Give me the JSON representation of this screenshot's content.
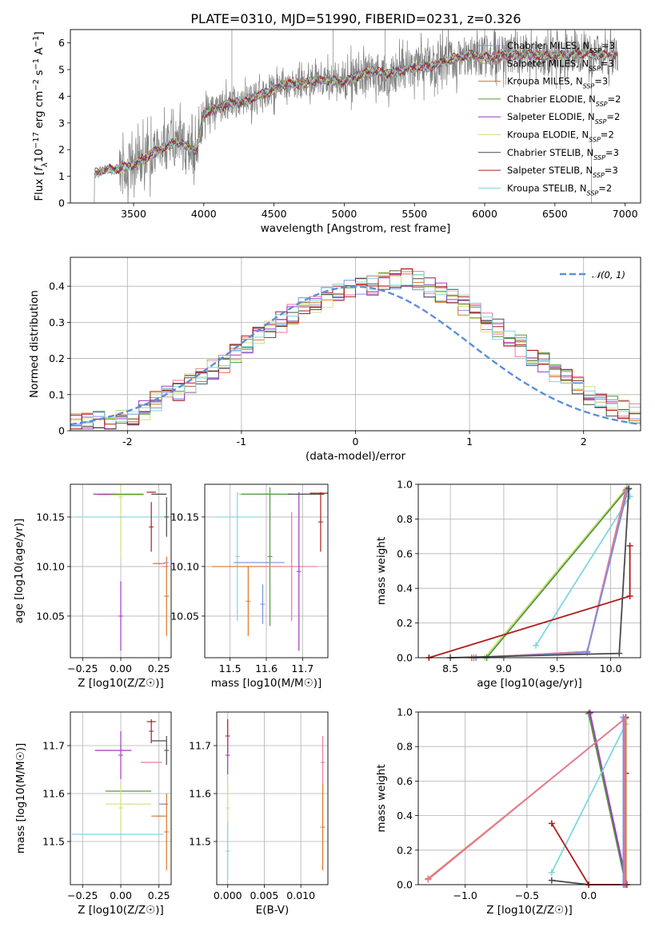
{
  "figure_title": "PLATE=0310, MJD=51990, FIBERID=0231, z=0.326",
  "colors": {
    "Chabrier MILES": "#7b8fe0",
    "Salpeter MILES": "#e67a9a",
    "Kroupa MILES": "#d9762b",
    "Chabrier ELODIE": "#4f9a3c",
    "Salpeter ELODIE": "#a337c2",
    "Kroupa ELODIE": "#d2e07a",
    "Chabrier STELIB": "#4a4a4a",
    "Salpeter STELIB": "#b01b1b",
    "Kroupa STELIB": "#7fd6de",
    "data": "#808080",
    "normal": "#5b8fd9"
  },
  "chart_data": [
    {
      "id": "spectrum",
      "type": "line",
      "title": "PLATE=0310, MJD=51990, FIBERID=0231, z=0.326",
      "xlabel": "wavelength [Angstrom, rest frame]",
      "ylabel_parts": [
        "Flux [",
        "f",
        "λ",
        "10",
        "−17",
        " erg cm",
        "−2",
        " s",
        "−1",
        " A",
        "−1",
        "]"
      ],
      "xlim": [
        3050,
        7110
      ],
      "ylim": [
        0,
        6.5
      ],
      "xticks": [
        3500,
        4000,
        4500,
        5000,
        5500,
        6000,
        6500,
        7000
      ],
      "yticks": [
        0,
        1,
        2,
        3,
        4,
        5,
        6
      ],
      "legend_position": "upper-right",
      "legend": [
        {
          "model": "Chabrier MILES",
          "nssp": "3"
        },
        {
          "model": "Salpeter MILES",
          "nssp": "3"
        },
        {
          "model": "Kroupa MILES",
          "nssp": "3"
        },
        {
          "model": "Chabrier ELODIE",
          "nssp": "2"
        },
        {
          "model": "Salpeter ELODIE",
          "nssp": "2"
        },
        {
          "model": "Kroupa ELODIE",
          "nssp": "2"
        },
        {
          "model": "Chabrier STELIB",
          "nssp": "3"
        },
        {
          "model": "Salpeter STELIB",
          "nssp": "3"
        },
        {
          "model": "Kroupa STELIB",
          "nssp": "2"
        }
      ],
      "continuum": {
        "x": [
          3220,
          3300,
          3400,
          3500,
          3600,
          3700,
          3800,
          3900,
          3950,
          4000,
          4100,
          4200,
          4300,
          4400,
          4500,
          4600,
          4700,
          4800,
          4900,
          5000,
          5100,
          5200,
          5300,
          5400,
          5500,
          5600,
          5700,
          5800,
          5900,
          6000,
          6100,
          6200,
          6300,
          6400,
          6500,
          6600,
          6700,
          6800,
          6900,
          6950
        ],
        "y": [
          1.1,
          1.25,
          1.3,
          1.45,
          1.75,
          2.05,
          2.3,
          2.1,
          1.95,
          3.35,
          3.55,
          3.75,
          3.8,
          4.05,
          4.25,
          4.5,
          4.45,
          4.6,
          4.6,
          4.55,
          4.75,
          4.95,
          4.85,
          4.95,
          5.1,
          5.1,
          5.3,
          5.45,
          5.55,
          5.45,
          5.5,
          5.55,
          5.6,
          5.5,
          5.5,
          5.6,
          5.6,
          5.55,
          5.55,
          5.6
        ]
      }
    },
    {
      "id": "residuals",
      "type": "histogram",
      "xlabel": "(data-model)/error",
      "ylabel": "Normed distribution",
      "xlim": [
        -2.5,
        2.5
      ],
      "ylim": [
        0,
        0.48
      ],
      "xticks": [
        -2,
        -1,
        0,
        1,
        2
      ],
      "yticks": [
        0.0,
        0.1,
        0.2,
        0.3,
        0.4
      ],
      "grid": true,
      "legend_position": "upper-right",
      "legend_label": "𝒩(0, 1)",
      "bin_width": 0.1,
      "bin_start": -2.5,
      "base_values": [
        0.025,
        0.025,
        0.03,
        0.03,
        0.035,
        0.045,
        0.06,
        0.085,
        0.1,
        0.11,
        0.13,
        0.15,
        0.17,
        0.19,
        0.215,
        0.24,
        0.265,
        0.28,
        0.3,
        0.32,
        0.34,
        0.355,
        0.37,
        0.38,
        0.39,
        0.395,
        0.4,
        0.41,
        0.415,
        0.42,
        0.415,
        0.4,
        0.385,
        0.37,
        0.35,
        0.33,
        0.3,
        0.28,
        0.26,
        0.235,
        0.21,
        0.19,
        0.165,
        0.14,
        0.12,
        0.1,
        0.08,
        0.07,
        0.06,
        0.05,
        0.045
      ]
    },
    {
      "id": "age-vs-z",
      "type": "scatter",
      "xlabel": "Z [log10(Z/Z☉)]",
      "ylabel": "age  [log10(age/yr)]",
      "xlim": [
        -0.33,
        0.33
      ],
      "ylim": [
        10.008,
        10.183
      ],
      "xticks": [
        -0.25,
        0.0,
        0.25
      ],
      "xtick_labels": [
        "−0.25",
        "0.00",
        "0.25"
      ],
      "yticks": [
        10.05,
        10.1,
        10.15
      ],
      "ytick_labels": [
        "10.05",
        "10.10",
        "10.15"
      ],
      "grid": true,
      "points": [
        {
          "model": "Salpeter ELODIE",
          "x": -0.1,
          "y": 10.173,
          "xerr": 0.08,
          "yerr": 0.0
        },
        {
          "model": "Salpeter ELODIE",
          "x": 0.0,
          "y": 10.05,
          "xerr": 0.0,
          "yerr": 0.035
        },
        {
          "model": "Kroupa ELODIE",
          "x": 0.0,
          "y": 10.172,
          "xerr": 0.15,
          "yerr": 0.0
        },
        {
          "model": "Kroupa ELODIE",
          "x": 0.0,
          "y": 10.17,
          "xerr": 0.0,
          "yerr": 0.06
        },
        {
          "model": "Chabrier ELODIE",
          "x": 0.05,
          "y": 10.173,
          "xerr": 0.1,
          "yerr": 0.0
        },
        {
          "model": "Kroupa STELIB",
          "x": 0.0,
          "y": 10.15,
          "xerr": 0.3,
          "yerr": 0.0
        },
        {
          "model": "Chabrier STELIB",
          "x": 0.25,
          "y": 10.173,
          "xerr": 0.05,
          "yerr": 0.0
        },
        {
          "model": "Chabrier STELIB",
          "x": 0.3,
          "y": 10.15,
          "xerr": 0.0,
          "yerr": 0.02
        },
        {
          "model": "Salpeter STELIB",
          "x": 0.2,
          "y": 10.175,
          "xerr": 0.03,
          "yerr": 0.0
        },
        {
          "model": "Salpeter STELIB",
          "x": 0.2,
          "y": 10.14,
          "xerr": 0.0,
          "yerr": 0.025
        },
        {
          "model": "Salpeter MILES",
          "x": 0.29,
          "y": 10.1,
          "xerr": 0.02,
          "yerr": 0.0
        },
        {
          "model": "Kroupa MILES",
          "x": 0.25,
          "y": 10.103,
          "xerr": 0.04,
          "yerr": 0.0
        },
        {
          "model": "Kroupa MILES",
          "x": 0.3,
          "y": 10.07,
          "xerr": 0.0,
          "yerr": 0.04
        },
        {
          "model": "Chabrier MILES",
          "x": 0.3,
          "y": 10.104,
          "xerr": 0.0,
          "yerr": 0.0
        }
      ]
    },
    {
      "id": "age-vs-mass",
      "type": "scatter",
      "xlabel": "mass [log10(M/M☉)]",
      "xlim": [
        11.43,
        11.77
      ],
      "ylim": [
        10.008,
        10.183
      ],
      "xticks": [
        11.5,
        11.6,
        11.7
      ],
      "xtick_labels": [
        "11.5",
        "11.6",
        "11.7"
      ],
      "yticks": [
        10.05,
        10.1,
        10.15
      ],
      "ytick_labels": [
        "10.05",
        "10.10",
        "10.15"
      ],
      "grid": true,
      "points": [
        {
          "model": "Kroupa STELIB",
          "x": 11.52,
          "y": 10.15,
          "xerr": 0.06,
          "yerr": 0.0
        },
        {
          "model": "Kroupa STELIB",
          "x": 11.52,
          "y": 10.11,
          "xerr": 0.0,
          "yerr": 0.065
        },
        {
          "model": "Kroupa ELODIE",
          "x": 11.58,
          "y": 10.173,
          "xerr": 0.06,
          "yerr": 0.0
        },
        {
          "model": "Kroupa MILES",
          "x": 11.55,
          "y": 10.1,
          "xerr": 0.1,
          "yerr": 0.0
        },
        {
          "model": "Kroupa MILES",
          "x": 11.55,
          "y": 10.065,
          "xerr": 0.0,
          "yerr": 0.035
        },
        {
          "model": "Chabrier MILES",
          "x": 11.58,
          "y": 10.104,
          "xerr": 0.07,
          "yerr": 0.0
        },
        {
          "model": "Chabrier MILES",
          "x": 11.59,
          "y": 10.062,
          "xerr": 0.0,
          "yerr": 0.02
        },
        {
          "model": "Chabrier ELODIE",
          "x": 11.6,
          "y": 10.173,
          "xerr": 0.07,
          "yerr": 0.0
        },
        {
          "model": "Chabrier ELODIE",
          "x": 11.61,
          "y": 10.11,
          "xerr": 0.0,
          "yerr": 0.07
        },
        {
          "model": "Salpeter MILES",
          "x": 11.67,
          "y": 10.1,
          "xerr": 0.07,
          "yerr": 0.0
        },
        {
          "model": "Salpeter MILES",
          "x": 11.67,
          "y": 10.1,
          "xerr": 0.0,
          "yerr": 0.055
        },
        {
          "model": "Salpeter ELODIE",
          "x": 11.69,
          "y": 10.095,
          "xerr": 0.0,
          "yerr": 0.08
        },
        {
          "model": "Chabrier STELIB",
          "x": 11.71,
          "y": 10.173,
          "xerr": 0.05,
          "yerr": 0.0
        },
        {
          "model": "Salpeter STELIB",
          "x": 11.75,
          "y": 10.174,
          "xerr": 0.03,
          "yerr": 0.0
        },
        {
          "model": "Salpeter STELIB",
          "x": 11.75,
          "y": 10.145,
          "xerr": 0.0,
          "yerr": 0.03
        }
      ]
    },
    {
      "id": "weight-vs-age",
      "type": "line",
      "xlabel": "age  [log10(age/yr)]",
      "ylabel": "mass weight",
      "xlim": [
        8.2,
        10.28
      ],
      "ylim": [
        0,
        1
      ],
      "xticks": [
        8.5,
        9.0,
        9.5,
        10.0
      ],
      "xtick_labels": [
        "8.5",
        "9.0",
        "9.5",
        "10.0"
      ],
      "yticks": [
        0,
        0.2,
        0.4,
        0.6,
        0.8,
        1.0
      ],
      "ytick_labels": [
        "0.0",
        "0.2",
        "0.4",
        "0.6",
        "0.8",
        "1.0"
      ],
      "grid": true,
      "series": [
        {
          "model": "Kroupa ELODIE",
          "x": [
            8.82,
            10.15
          ],
          "y": [
            0.0,
            0.98
          ]
        },
        {
          "model": "Chabrier ELODIE",
          "x": [
            8.84,
            10.15
          ],
          "y": [
            0.0,
            0.97
          ]
        },
        {
          "model": "Kroupa STELIB",
          "x": [
            9.3,
            10.18
          ],
          "y": [
            0.07,
            0.93
          ]
        },
        {
          "model": "Kroupa MILES",
          "x": [
            8.7,
            9.78,
            10.15
          ],
          "y": [
            0.0,
            0.035,
            0.965
          ]
        },
        {
          "model": "Salpeter MILES",
          "x": [
            8.72,
            9.78,
            10.14
          ],
          "y": [
            0.0,
            0.035,
            0.965
          ]
        },
        {
          "model": "Chabrier MILES",
          "x": [
            8.74,
            9.78,
            10.16
          ],
          "y": [
            0.0,
            0.03,
            0.97
          ]
        },
        {
          "model": "Chabrier STELIB",
          "x": [
            8.5,
            10.08,
            10.17
          ],
          "y": [
            0.0,
            0.025,
            0.975
          ]
        },
        {
          "model": "Salpeter STELIB",
          "x": [
            8.3,
            10.18,
            10.18
          ],
          "y": [
            0.0,
            0.355,
            0.645
          ]
        }
      ]
    },
    {
      "id": "mass-vs-z",
      "type": "scatter",
      "xlabel": "Z [log10(Z/Z☉)]",
      "ylabel": "mass [log10(M/M☉)]",
      "xlim": [
        -0.33,
        0.33
      ],
      "ylim": [
        11.41,
        11.77
      ],
      "xticks": [
        -0.25,
        0.0,
        0.25
      ],
      "xtick_labels": [
        "−0.25",
        "0.00",
        "0.25"
      ],
      "yticks": [
        11.5,
        11.6,
        11.7
      ],
      "ytick_labels": [
        "11.5",
        "11.6",
        "11.7"
      ],
      "grid": true,
      "points": [
        {
          "model": "Salpeter ELODIE",
          "x": -0.05,
          "y": 11.69,
          "xerr": 0.12,
          "yerr": 0.0
        },
        {
          "model": "Salpeter ELODIE",
          "x": 0.0,
          "y": 11.68,
          "xerr": 0.0,
          "yerr": 0.05
        },
        {
          "model": "Chabrier ELODIE",
          "x": 0.05,
          "y": 11.605,
          "xerr": 0.15,
          "yerr": 0.0
        },
        {
          "model": "Kroupa ELODIE",
          "x": 0.05,
          "y": 11.578,
          "xerr": 0.15,
          "yerr": 0.0
        },
        {
          "model": "Kroupa ELODIE",
          "x": 0.0,
          "y": 11.57,
          "xerr": 0.0,
          "yerr": 0.05
        },
        {
          "model": "Kroupa STELIB",
          "x": -0.02,
          "y": 11.515,
          "xerr": 0.3,
          "yerr": 0.0
        },
        {
          "model": "Salpeter STELIB",
          "x": 0.2,
          "y": 11.75,
          "xerr": 0.03,
          "yerr": 0.0
        },
        {
          "model": "Salpeter STELIB",
          "x": 0.2,
          "y": 11.73,
          "xerr": 0.0,
          "yerr": 0.025
        },
        {
          "model": "Chabrier STELIB",
          "x": 0.25,
          "y": 11.71,
          "xerr": 0.05,
          "yerr": 0.0
        },
        {
          "model": "Chabrier STELIB",
          "x": 0.3,
          "y": 11.69,
          "xerr": 0.0,
          "yerr": 0.03
        },
        {
          "model": "Salpeter MILES",
          "x": 0.2,
          "y": 11.665,
          "xerr": 0.07,
          "yerr": 0.0
        },
        {
          "model": "Chabrier MILES",
          "x": 0.28,
          "y": 11.578,
          "xerr": 0.03,
          "yerr": 0.0
        },
        {
          "model": "Kroupa MILES",
          "x": 0.25,
          "y": 11.553,
          "xerr": 0.05,
          "yerr": 0.0
        },
        {
          "model": "Kroupa MILES",
          "x": 0.3,
          "y": 11.52,
          "xerr": 0.0,
          "yerr": 0.08
        }
      ]
    },
    {
      "id": "mass-vs-ebv",
      "type": "scatter",
      "xlabel": "E(B-V)",
      "xlim": [
        -0.0015,
        0.0137
      ],
      "ylim": [
        11.41,
        11.77
      ],
      "xticks": [
        0.0,
        0.005,
        0.01
      ],
      "xtick_labels": [
        "0.000",
        "0.005",
        "0.010"
      ],
      "yticks": [
        11.5,
        11.6,
        11.7
      ],
      "ytick_labels": [
        "11.5",
        "11.6",
        "11.7"
      ],
      "grid": true,
      "points": [
        {
          "model": "Salpeter STELIB",
          "x": 0.0,
          "y": 11.72,
          "xerr": 0.0,
          "yerr": 0.035
        },
        {
          "model": "Salpeter ELODIE",
          "x": 0.0,
          "y": 11.68,
          "xerr": 0.0,
          "yerr": 0.04
        },
        {
          "model": "Kroupa ELODIE",
          "x": 0.0,
          "y": 11.57,
          "xerr": 0.0,
          "yerr": 0.05
        },
        {
          "model": "Kroupa STELIB",
          "x": 0.0,
          "y": 11.48,
          "xerr": 0.0,
          "yerr": 0.06
        },
        {
          "model": "Salpeter MILES",
          "x": 0.013,
          "y": 11.665,
          "xerr": 0.0,
          "yerr": 0.055
        },
        {
          "model": "Kroupa MILES",
          "x": 0.013,
          "y": 11.53,
          "xerr": 0.0,
          "yerr": 0.09
        }
      ]
    },
    {
      "id": "weight-vs-z",
      "type": "line",
      "xlabel": "Z [log10(Z/Z☉)]",
      "ylabel": "mass weight",
      "xlim": [
        -1.38,
        0.42
      ],
      "ylim": [
        0,
        1
      ],
      "xticks": [
        -1.0,
        -0.5,
        0.0
      ],
      "xtick_labels": [
        "−1.0",
        "−0.5",
        "0.0"
      ],
      "yticks": [
        0,
        0.2,
        0.4,
        0.6,
        0.8,
        1.0
      ],
      "ytick_labels": [
        "0.0",
        "0.2",
        "0.4",
        "0.6",
        "0.8",
        "1.0"
      ],
      "grid": true,
      "series": [
        {
          "model": "Kroupa ELODIE",
          "x": [
            0.0,
            0.3
          ],
          "y": [
            1.0,
            0.0
          ]
        },
        {
          "model": "Chabrier ELODIE",
          "x": [
            0.0,
            0.3
          ],
          "y": [
            0.99,
            0.0
          ]
        },
        {
          "model": "Salpeter ELODIE",
          "x": [
            0.01,
            0.31
          ],
          "y": [
            0.995,
            0.0
          ]
        },
        {
          "model": "Kroupa STELIB",
          "x": [
            -0.3,
            0.3
          ],
          "y": [
            0.07,
            0.93
          ]
        },
        {
          "model": "Chabrier STELIB",
          "x": [
            -0.3,
            0.0,
            0.3,
            0.3
          ],
          "y": [
            0.025,
            0.0,
            0.0,
            0.97
          ]
        },
        {
          "model": "Salpeter STELIB",
          "x": [
            -0.3,
            0.0,
            0.3,
            0.3
          ],
          "y": [
            0.355,
            0.0,
            0.0,
            0.645
          ]
        },
        {
          "model": "Kroupa MILES",
          "x": [
            -1.3,
            0.3,
            0.3
          ],
          "y": [
            0.035,
            0.965,
            0.0
          ]
        },
        {
          "model": "Salpeter MILES",
          "x": [
            -1.3,
            0.29,
            0.29
          ],
          "y": [
            0.03,
            0.96,
            0.0
          ]
        },
        {
          "model": "Chabrier MILES",
          "x": [
            0.28,
            0.28
          ],
          "y": [
            0.0,
            0.97
          ]
        }
      ]
    }
  ]
}
